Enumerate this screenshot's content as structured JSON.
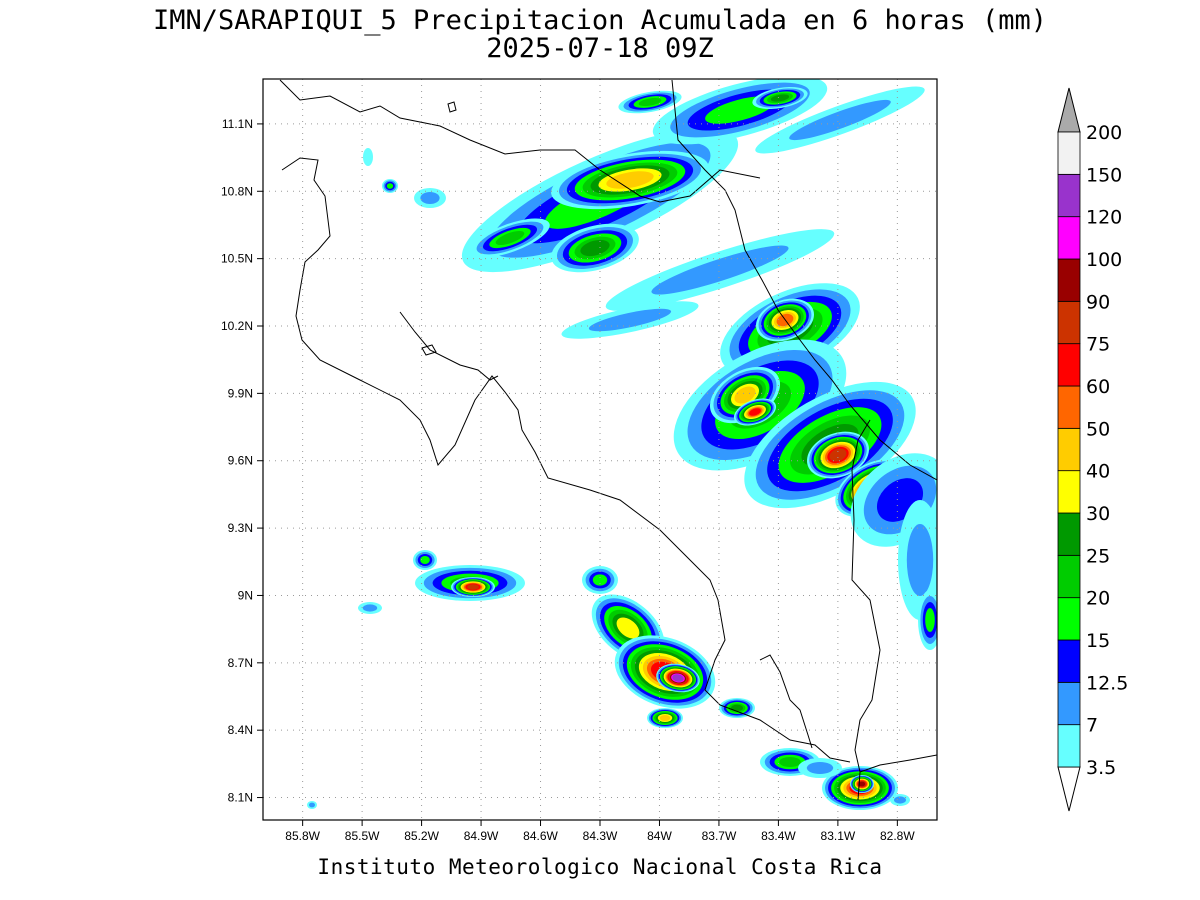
{
  "title": {
    "line1": "IMN/SARAPIQUI_5 Precipitacion Acumulada en 6 horas (mm)",
    "line2": "2025-07-18 09Z"
  },
  "footer": "Instituto Meteorologico Nacional Costa Rica",
  "map": {
    "lon_range": [
      -86.0,
      -82.6
    ],
    "lat_range": [
      8.0,
      11.3
    ],
    "x_ticks": [
      {
        "lon": -85.8,
        "label": "85.8W"
      },
      {
        "lon": -85.5,
        "label": "85.5W"
      },
      {
        "lon": -85.2,
        "label": "85.2W"
      },
      {
        "lon": -84.9,
        "label": "84.9W"
      },
      {
        "lon": -84.6,
        "label": "84.6W"
      },
      {
        "lon": -84.3,
        "label": "84.3W"
      },
      {
        "lon": -84.0,
        "label": "84W"
      },
      {
        "lon": -83.7,
        "label": "83.7W"
      },
      {
        "lon": -83.4,
        "label": "83.4W"
      },
      {
        "lon": -83.1,
        "label": "83.1W"
      },
      {
        "lon": -82.8,
        "label": "82.8W"
      }
    ],
    "y_ticks": [
      {
        "lat": 8.1,
        "label": "8.1N"
      },
      {
        "lat": 8.4,
        "label": "8.4N"
      },
      {
        "lat": 8.7,
        "label": "8.7N"
      },
      {
        "lat": 9.0,
        "label": "9N"
      },
      {
        "lat": 9.3,
        "label": "9.3N"
      },
      {
        "lat": 9.6,
        "label": "9.6N"
      },
      {
        "lat": 9.9,
        "label": "9.9N"
      },
      {
        "lat": 10.2,
        "label": "10.2N"
      },
      {
        "lat": 10.5,
        "label": "10.5N"
      },
      {
        "lat": 10.8,
        "label": "10.8N"
      },
      {
        "lat": 11.1,
        "label": "11.1N"
      }
    ],
    "grid": "dotted"
  },
  "colorbar": {
    "levels": [
      {
        "label": "3.5",
        "color": "#66ffff"
      },
      {
        "label": "7",
        "color": "#3399ff"
      },
      {
        "label": "12.5",
        "color": "#0000ff"
      },
      {
        "label": "15",
        "color": "#00ff00"
      },
      {
        "label": "20",
        "color": "#00cc00"
      },
      {
        "label": "25",
        "color": "#009900"
      },
      {
        "label": "30",
        "color": "#ffff00"
      },
      {
        "label": "40",
        "color": "#ffcc00"
      },
      {
        "label": "50",
        "color": "#ff6600"
      },
      {
        "label": "60",
        "color": "#ff0000"
      },
      {
        "label": "75",
        "color": "#cc3300"
      },
      {
        "label": "90",
        "color": "#990000"
      },
      {
        "label": "100",
        "color": "#ff00ff"
      },
      {
        "label": "120",
        "color": "#9933cc"
      },
      {
        "label": "150",
        "color": "#f2f2f2"
      },
      {
        "label": "200",
        "color": "#aaaaaa"
      }
    ],
    "under_color": "#ffffff",
    "over_color": "#aaaaaa"
  }
}
